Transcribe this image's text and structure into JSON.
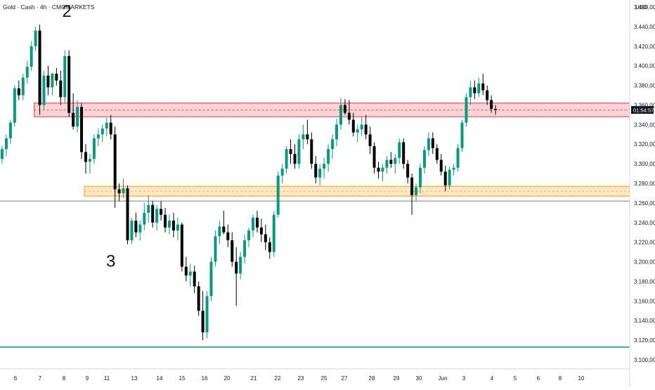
{
  "chart_data": {
    "type": "candlestick",
    "title": "Gold · Cash · 4h · CMCMARKETS",
    "currency": "USD",
    "price_tag": "01:54:57",
    "x_labels": [
      "6",
      "7",
      "8",
      "9",
      "11",
      "13",
      "14",
      "15",
      "16",
      "20",
      "21",
      "22",
      "23",
      "25",
      "27",
      "28",
      "29",
      "30",
      "Jun",
      "3",
      "4",
      "5",
      "6",
      "8",
      "10"
    ],
    "y_ticks": [
      "3.460,00",
      "3.440,00",
      "3.420,00",
      "3.400,00",
      "3.380,00",
      "3.360,00",
      "3.340,00",
      "3.320,00",
      "3.300,00",
      "3.280,00",
      "3.260,00",
      "3.240,00",
      "3.220,00",
      "3.200,00",
      "3.180,00",
      "3.160,00",
      "3.140,00",
      "3.120,00",
      "3.100,00"
    ],
    "ylim": [
      3100,
      3460
    ],
    "annotations": [
      {
        "text": "2",
        "x_index": 15.5,
        "y": 3450
      },
      {
        "text": "3",
        "x_index": 26,
        "y": 3195
      }
    ],
    "zones": [
      {
        "name": "resistance-zone",
        "y0": 3348,
        "y1": 3362,
        "from_index": 8,
        "color": "#f23645"
      },
      {
        "name": "support-zone",
        "y0": 3267,
        "y1": 3277,
        "from_index": 20,
        "color": "#ff9800"
      }
    ],
    "hlines": [
      {
        "name": "gray-line",
        "y": 3262,
        "color": "#787b86"
      },
      {
        "name": "green-line",
        "y": 3113,
        "color": "#089981"
      }
    ],
    "candles": [
      [
        3305,
        3318,
        3300,
        3315
      ],
      [
        3315,
        3330,
        3308,
        3326
      ],
      [
        3326,
        3345,
        3320,
        3342
      ],
      [
        3342,
        3380,
        3338,
        3377
      ],
      [
        3377,
        3385,
        3365,
        3370
      ],
      [
        3370,
        3392,
        3365,
        3388
      ],
      [
        3388,
        3405,
        3382,
        3399
      ],
      [
        3399,
        3425,
        3395,
        3420
      ],
      [
        3420,
        3440,
        3415,
        3436
      ],
      [
        3436,
        3442,
        3350,
        3360
      ],
      [
        3360,
        3395,
        3355,
        3390
      ],
      [
        3390,
        3400,
        3370,
        3378
      ],
      [
        3378,
        3393,
        3370,
        3392
      ],
      [
        3392,
        3398,
        3380,
        3385
      ],
      [
        3385,
        3395,
        3360,
        3368
      ],
      [
        3368,
        3416,
        3362,
        3410
      ],
      [
        3410,
        3416,
        3348,
        3352
      ],
      [
        3352,
        3372,
        3335,
        3338
      ],
      [
        3338,
        3365,
        3332,
        3358
      ],
      [
        3358,
        3362,
        3305,
        3312
      ],
      [
        3312,
        3320,
        3290,
        3302
      ],
      [
        3302,
        3310,
        3290,
        3305
      ],
      [
        3305,
        3330,
        3300,
        3326
      ],
      [
        3326,
        3336,
        3318,
        3330
      ],
      [
        3330,
        3340,
        3322,
        3336
      ],
      [
        3336,
        3347,
        3328,
        3342
      ],
      [
        3342,
        3350,
        3325,
        3330
      ],
      [
        3330,
        3338,
        3255,
        3274
      ],
      [
        3274,
        3280,
        3262,
        3270
      ],
      [
        3270,
        3285,
        3265,
        3275
      ],
      [
        3275,
        3278,
        3218,
        3222
      ],
      [
        3222,
        3245,
        3218,
        3242
      ],
      [
        3242,
        3250,
        3225,
        3230
      ],
      [
        3230,
        3242,
        3222,
        3238
      ],
      [
        3238,
        3260,
        3232,
        3250
      ],
      [
        3250,
        3268,
        3240,
        3258
      ],
      [
        3258,
        3262,
        3235,
        3240
      ],
      [
        3240,
        3258,
        3232,
        3254
      ],
      [
        3254,
        3262,
        3242,
        3248
      ],
      [
        3248,
        3255,
        3230,
        3235
      ],
      [
        3235,
        3248,
        3228,
        3242
      ],
      [
        3242,
        3250,
        3225,
        3232
      ],
      [
        3232,
        3245,
        3222,
        3238
      ],
      [
        3238,
        3240,
        3190,
        3195
      ],
      [
        3195,
        3205,
        3180,
        3186
      ],
      [
        3186,
        3198,
        3175,
        3190
      ],
      [
        3190,
        3196,
        3168,
        3175
      ],
      [
        3175,
        3180,
        3145,
        3150
      ],
      [
        3150,
        3170,
        3120,
        3128
      ],
      [
        3128,
        3170,
        3122,
        3165
      ],
      [
        3165,
        3205,
        3160,
        3200
      ],
      [
        3200,
        3232,
        3195,
        3226
      ],
      [
        3226,
        3242,
        3218,
        3236
      ],
      [
        3236,
        3252,
        3228,
        3230
      ],
      [
        3230,
        3238,
        3215,
        3222
      ],
      [
        3222,
        3230,
        3195,
        3200
      ],
      [
        3200,
        3215,
        3155,
        3188
      ],
      [
        3188,
        3210,
        3182,
        3205
      ],
      [
        3205,
        3228,
        3198,
        3222
      ],
      [
        3222,
        3235,
        3215,
        3232
      ],
      [
        3232,
        3248,
        3225,
        3245
      ],
      [
        3245,
        3252,
        3230,
        3235
      ],
      [
        3235,
        3244,
        3220,
        3228
      ],
      [
        3228,
        3238,
        3212,
        3220
      ],
      [
        3220,
        3225,
        3203,
        3210
      ],
      [
        3210,
        3252,
        3205,
        3248
      ],
      [
        3248,
        3292,
        3245,
        3288
      ],
      [
        3288,
        3300,
        3280,
        3295
      ],
      [
        3295,
        3318,
        3290,
        3315
      ],
      [
        3315,
        3325,
        3300,
        3310
      ],
      [
        3310,
        3320,
        3295,
        3300
      ],
      [
        3300,
        3330,
        3295,
        3325
      ],
      [
        3325,
        3340,
        3315,
        3330
      ],
      [
        3330,
        3345,
        3320,
        3325
      ],
      [
        3325,
        3332,
        3295,
        3300
      ],
      [
        3300,
        3308,
        3280,
        3286
      ],
      [
        3286,
        3300,
        3278,
        3295
      ],
      [
        3295,
        3306,
        3285,
        3300
      ],
      [
        3300,
        3320,
        3292,
        3315
      ],
      [
        3315,
        3330,
        3305,
        3325
      ],
      [
        3325,
        3346,
        3318,
        3340
      ],
      [
        3340,
        3367,
        3335,
        3360
      ],
      [
        3360,
        3366,
        3350,
        3352
      ],
      [
        3352,
        3365,
        3340,
        3345
      ],
      [
        3345,
        3352,
        3328,
        3332
      ],
      [
        3332,
        3340,
        3322,
        3335
      ],
      [
        3335,
        3348,
        3328,
        3340
      ],
      [
        3340,
        3350,
        3325,
        3330
      ],
      [
        3330,
        3338,
        3310,
        3318
      ],
      [
        3318,
        3322,
        3290,
        3296
      ],
      [
        3296,
        3302,
        3285,
        3292
      ],
      [
        3292,
        3300,
        3282,
        3296
      ],
      [
        3296,
        3308,
        3290,
        3304
      ],
      [
        3304,
        3312,
        3296,
        3300
      ],
      [
        3300,
        3310,
        3290,
        3306
      ],
      [
        3306,
        3326,
        3300,
        3322
      ],
      [
        3322,
        3326,
        3295,
        3300
      ],
      [
        3300,
        3304,
        3280,
        3286
      ],
      [
        3286,
        3290,
        3248,
        3268
      ],
      [
        3268,
        3280,
        3262,
        3276
      ],
      [
        3276,
        3300,
        3270,
        3296
      ],
      [
        3296,
        3318,
        3290,
        3314
      ],
      [
        3314,
        3332,
        3308,
        3326
      ],
      [
        3326,
        3332,
        3310,
        3316
      ],
      [
        3316,
        3320,
        3300,
        3304
      ],
      [
        3304,
        3310,
        3288,
        3292
      ],
      [
        3292,
        3298,
        3272,
        3278
      ],
      [
        3278,
        3297,
        3274,
        3294
      ],
      [
        3294,
        3300,
        3288,
        3296
      ],
      [
        3296,
        3320,
        3292,
        3316
      ],
      [
        3316,
        3345,
        3312,
        3342
      ],
      [
        3342,
        3372,
        3338,
        3368
      ],
      [
        3368,
        3385,
        3360,
        3378
      ],
      [
        3378,
        3385,
        3366,
        3372
      ],
      [
        3372,
        3388,
        3368,
        3382
      ],
      [
        3382,
        3392,
        3370,
        3375
      ],
      [
        3375,
        3380,
        3360,
        3365
      ],
      [
        3365,
        3370,
        3352,
        3356
      ],
      [
        3356,
        3360,
        3350,
        3355
      ]
    ]
  }
}
